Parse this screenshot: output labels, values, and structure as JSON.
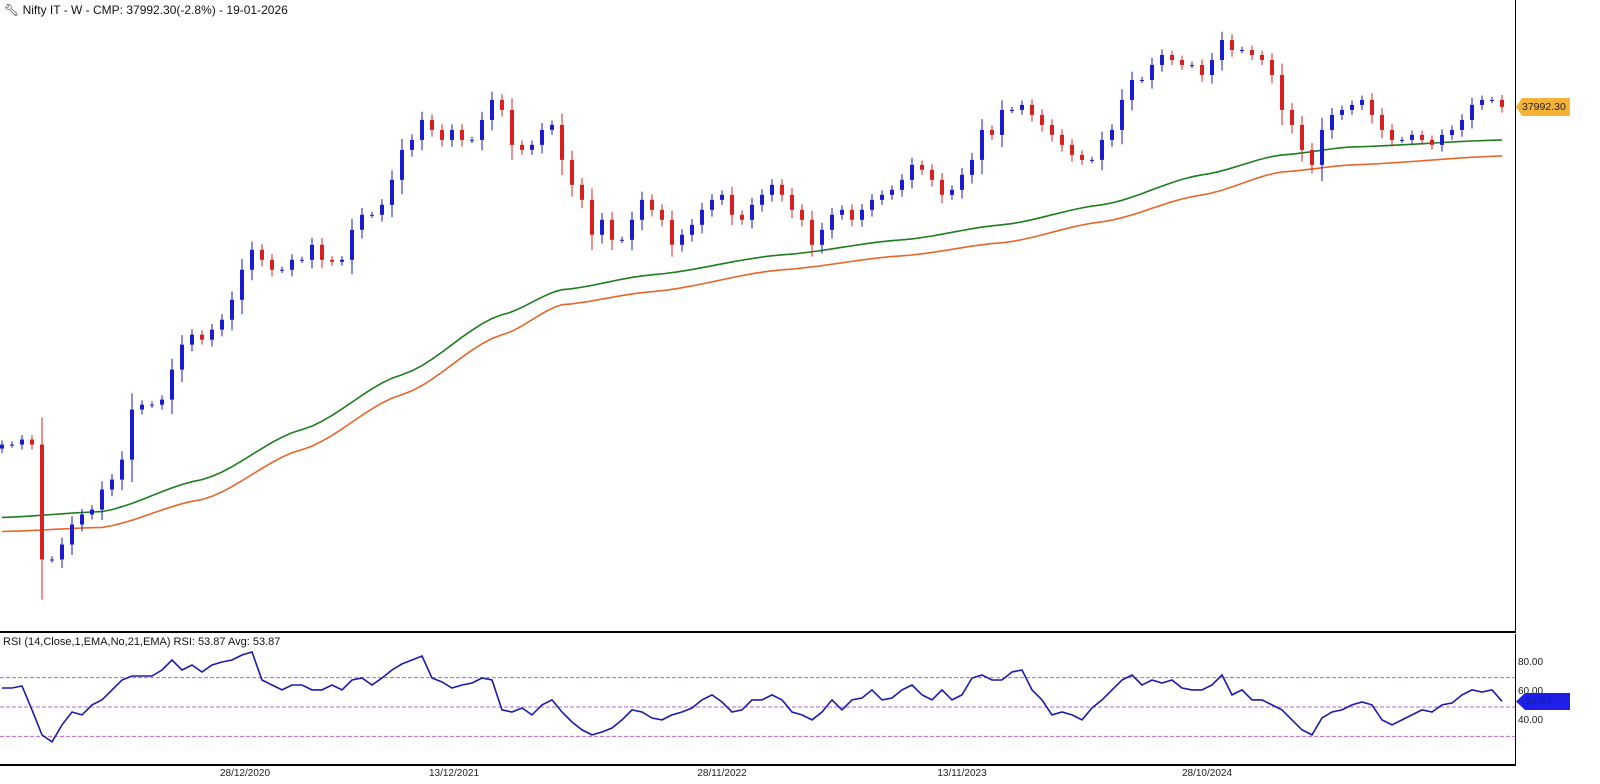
{
  "header": {
    "title": "Nifty IT - W - CMP: 37992.30(-2.8%) - 19-01-2026"
  },
  "price_tag": "37992.30",
  "rsi_panel": {
    "title": "RSI (14,Close,1,EMA,No,21,EMA) RSI: 53.87 Avg: 53.87",
    "value_tag": "53.87",
    "y_ticks": [
      {
        "label": "80.00",
        "value": 80
      },
      {
        "label": "60.00",
        "value": 60
      },
      {
        "label": "40.00",
        "value": 40
      }
    ],
    "levels": [
      70,
      50,
      30
    ]
  },
  "colors": {
    "up": "#1a1ad0",
    "down": "#d92020",
    "ema_fast": "#1e7d1e",
    "ema_slow": "#e8662a",
    "rsi": "#1a1ab0",
    "level": "#c060d0",
    "tag": "#f5b335"
  },
  "chart_data": {
    "type": "candlestick",
    "title": "Nifty IT - W",
    "yscale": "log",
    "ylim": [
      10210,
      49650
    ],
    "x_ticks": [
      {
        "label": "28/12/2020",
        "index": 24.3
      },
      {
        "label": "13/12/2021",
        "index": 45.2
      },
      {
        "label": "28/11/2022",
        "index": 72
      },
      {
        "label": "13/11/2023",
        "index": 96
      },
      {
        "label": "28/10/2024",
        "index": 120.5
      }
    ],
    "closes": [
      16320,
      16320,
      16527,
      16320,
      12242,
      12242,
      12709,
      13361,
      13700,
      13871,
      14585,
      14950,
      15717,
      17815,
      18035,
      18035,
      18263,
      19688,
      20957,
      21485,
      21218,
      21758,
      22305,
      23449,
      25277,
      26571,
      25915,
      25277,
      25277,
      25915,
      25915,
      26906,
      25915,
      25785,
      25915,
      27935,
      29004,
      29004,
      29737,
      31655,
      34121,
      34983,
      36777,
      35868,
      34983,
      35868,
      34983,
      34983,
      36777,
      38664,
      37708,
      34550,
      34121,
      34550,
      35868,
      36320,
      33277,
      31260,
      30109,
      27587,
      28642,
      27244,
      27244,
      28642,
      30109,
      29368,
      28642,
      26906,
      27587,
      28285,
      29368,
      30109,
      30489,
      29004,
      28642,
      29737,
      30489,
      31260,
      30489,
      29368,
      28642,
      26906,
      27935,
      29004,
      29368,
      28642,
      29368,
      30109,
      30489,
      30872,
      31655,
      32864,
      32457,
      31655,
      30489,
      30872,
      32055,
      33277,
      35868,
      35424,
      37708,
      37708,
      38182,
      37240,
      36320,
      35424,
      34550,
      33695,
      33277,
      33277,
      34983,
      35868,
      38664,
      40644,
      40644,
      42198,
      43265,
      42729,
      42198,
      42198,
      41157,
      42729,
      44918,
      43810,
      43810,
      43265,
      42729,
      41157,
      37708,
      36320,
      34121,
      32864,
      35868,
      37240,
      37708,
      38182,
      38664,
      37240,
      35868,
      34983,
      34983,
      35424,
      34983,
      34550,
      35424,
      35868,
      36777,
      38182,
      38664,
      38664,
      37992
    ],
    "ema_fast": [
      [
        0,
        13600
      ],
      [
        10,
        13800
      ],
      [
        20,
        14950
      ],
      [
        30,
        16945
      ],
      [
        40,
        19440
      ],
      [
        50,
        22590
      ],
      [
        56,
        24045
      ],
      [
        65,
        24960
      ],
      [
        78,
        26240
      ],
      [
        90,
        27244
      ],
      [
        100,
        28285
      ],
      [
        110,
        29737
      ],
      [
        120,
        32055
      ],
      [
        128,
        33695
      ],
      [
        135,
        34376
      ],
      [
        150,
        34983
      ]
    ],
    "ema_slow": [
      [
        0,
        13130
      ],
      [
        10,
        13265
      ],
      [
        20,
        14225
      ],
      [
        30,
        16117
      ],
      [
        40,
        18494
      ],
      [
        50,
        21485
      ],
      [
        56,
        23160
      ],
      [
        65,
        23924
      ],
      [
        78,
        25277
      ],
      [
        90,
        26177
      ],
      [
        100,
        27043
      ],
      [
        110,
        28498
      ],
      [
        120,
        30489
      ],
      [
        128,
        32293
      ],
      [
        135,
        32864
      ],
      [
        150,
        33612
      ]
    ],
    "rsi": [
      62.9,
      62.9,
      64.3,
      48,
      31,
      26.2,
      37.8,
      46.6,
      44.6,
      51.4,
      54.8,
      61.6,
      68.4,
      71.1,
      71.1,
      71.1,
      75.2,
      82,
      75.2,
      78.6,
      73.8,
      78.6,
      80.6,
      82,
      85.4,
      87.4,
      68.4,
      65,
      61.6,
      65,
      65,
      61.6,
      61.6,
      65,
      61.6,
      68.4,
      69.7,
      65,
      69.7,
      75.2,
      79.3,
      82,
      84.7,
      69.7,
      67,
      62.9,
      65,
      66.3,
      69.7,
      68.4,
      48,
      46.6,
      49.3,
      44.6,
      51.4,
      54.8,
      46.6,
      39.8,
      34.4,
      31,
      33,
      35.7,
      41.2,
      48,
      46.6,
      42.5,
      41.2,
      44.6,
      46.6,
      49.3,
      54.8,
      58.2,
      53.4,
      46.6,
      48,
      54.8,
      54.8,
      58.2,
      54.8,
      46.6,
      44.6,
      41.2,
      46.6,
      54.8,
      48,
      54.8,
      56.1,
      61.6,
      54.8,
      56.1,
      61.6,
      65,
      58.2,
      54.8,
      61.6,
      54.8,
      58.2,
      69.7,
      71.8,
      68.4,
      68.4,
      73.8,
      75.2,
      61.6,
      54.8,
      44.6,
      46.6,
      44.6,
      41.2,
      49.3,
      54.8,
      61.6,
      68.4,
      71.8,
      65,
      68.4,
      66.3,
      68.4,
      62.9,
      61.6,
      61.6,
      65,
      71.8,
      58.2,
      61.6,
      54.8,
      54.8,
      51.4,
      48,
      41.2,
      34.4,
      31,
      42.5,
      46.6,
      48,
      51.4,
      53.4,
      51.4,
      41.2,
      37.8,
      41.2,
      44.6,
      48,
      46.6,
      51.4,
      52.7,
      58.2,
      61.6,
      60.2,
      61.6,
      53.87
    ]
  }
}
